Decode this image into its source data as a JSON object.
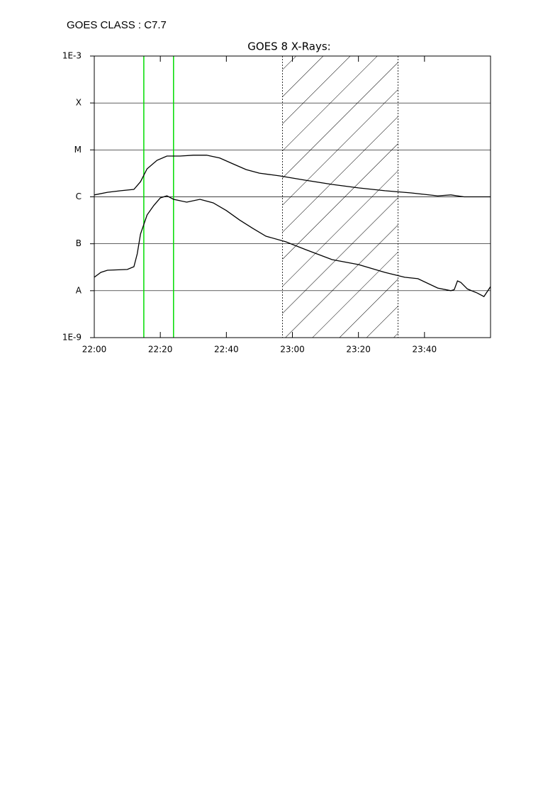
{
  "header": "GOES CLASS : C7.7",
  "chart_data": {
    "type": "line",
    "title": "GOES 8 X-Rays:",
    "log_y": true,
    "grid": true,
    "xlim": [
      "22:00",
      "24:00"
    ],
    "xticks": [
      "22:00",
      "22:20",
      "22:40",
      "23:00",
      "23:20",
      "23:40"
    ],
    "ylim": [
      1e-09,
      0.001
    ],
    "yticks": [
      {
        "value": 0.001,
        "label": "1E-3"
      },
      {
        "value": 0.0001,
        "label": "X"
      },
      {
        "value": 1e-05,
        "label": "M"
      },
      {
        "value": 1e-06,
        "label": "C"
      },
      {
        "value": 1e-07,
        "label": "B"
      },
      {
        "value": 1e-08,
        "label": "A"
      },
      {
        "value": 1e-09,
        "label": "1E-9"
      }
    ],
    "markers": [
      {
        "x": "22:15",
        "color": "#00dd00"
      },
      {
        "x": "22:24",
        "color": "#00dd00"
      }
    ],
    "shaded": {
      "start": "22:57",
      "end": "23:32"
    },
    "series": [
      {
        "color": "#000000",
        "x": [
          "22:00",
          "22:04",
          "22:08",
          "22:12",
          "22:14",
          "22:16",
          "22:19",
          "22:22",
          "22:26",
          "22:30",
          "22:34",
          "22:38",
          "22:42",
          "22:46",
          "22:50",
          "22:56",
          "23:04",
          "23:12",
          "23:20",
          "23:28",
          "23:36",
          "23:44",
          "23:48",
          "23:52",
          "24:00"
        ],
        "values": [
          1.1e-06,
          1.25e-06,
          1.35e-06,
          1.44e-06,
          2.1e-06,
          3.95e-06,
          6e-06,
          7.4e-06,
          7.4e-06,
          7.7e-06,
          7.7e-06,
          6.7e-06,
          5.05e-06,
          3.8e-06,
          3.2e-06,
          2.8e-06,
          2.26e-06,
          1.84e-06,
          1.55e-06,
          1.35e-06,
          1.21e-06,
          1.05e-06,
          1.1e-06,
          1e-06,
          1e-06
        ]
      },
      {
        "color": "#000000",
        "x": [
          "22:00",
          "22:02",
          "22:04",
          "22:10",
          "22:12",
          "22:13",
          "22:14",
          "22:16",
          "22:18",
          "22:20",
          "22:22",
          "22:24",
          "22:28",
          "22:32",
          "22:36",
          "22:40",
          "22:44",
          "22:48",
          "22:52",
          "22:58",
          "23:04",
          "23:12",
          "23:20",
          "23:28",
          "23:34",
          "23:38",
          "23:44",
          "23:48",
          "23:49",
          "23:50",
          "23:51",
          "23:53",
          "23:56",
          "23:58",
          "24:00"
        ],
        "values": [
          1.93e-08,
          2.46e-08,
          2.73e-08,
          2.83e-08,
          3.25e-08,
          6.1e-08,
          1.61e-07,
          4.12e-07,
          6.5e-07,
          9.5e-07,
          1.05e-06,
          8.85e-07,
          7.7e-07,
          8.85e-07,
          7.45e-07,
          5.1e-07,
          3.2e-07,
          2.13e-07,
          1.45e-07,
          1.1e-07,
          7.5e-08,
          4.6e-08,
          3.6e-08,
          2.46e-08,
          1.93e-08,
          1.8e-08,
          1.14e-08,
          1e-08,
          1.05e-08,
          1.62e-08,
          1.5e-08,
          1.09e-08,
          8.9e-09,
          7.5e-09,
          1.22e-08
        ]
      }
    ]
  }
}
